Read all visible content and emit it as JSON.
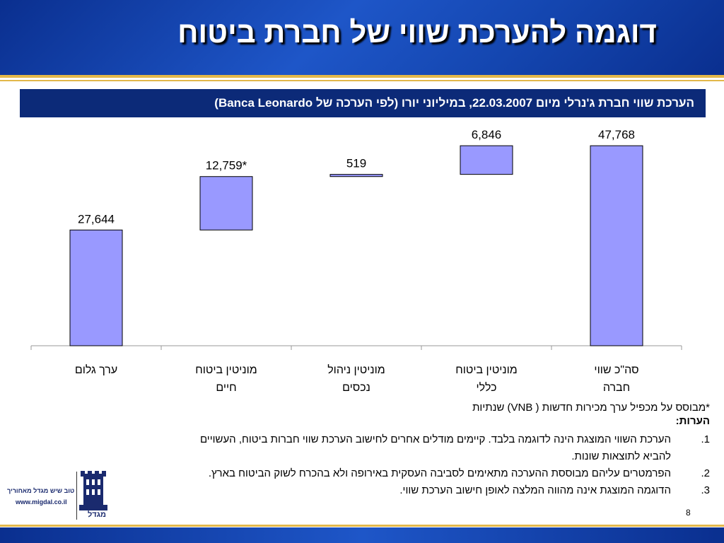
{
  "title": "דוגמה להערכת שווי של חברת ביטוח",
  "subtitle": "הערכת שווי חברת ג'נרלי מיום 22.03.2007, במיליוני יורו (לפי הערכה של Banca Leonardo)",
  "chart_data": {
    "type": "bar",
    "subtype": "waterfall",
    "categories": [
      [
        "ערך גלום"
      ],
      [
        "מוניטין ביטוח",
        "חיים"
      ],
      [
        "מוניטין ניהול",
        "נכסים"
      ],
      [
        "מוניטין ביטוח",
        "כללי"
      ],
      [
        "סה\"כ שווי",
        "חברה"
      ]
    ],
    "values": [
      27644,
      12759,
      519,
      6846,
      47768
    ],
    "data_labels": [
      "27,644",
      "12,759*",
      "519",
      "6,846",
      "47,768"
    ],
    "ylim": [
      0,
      51500
    ],
    "bar_color": "#9999ff",
    "grid": false
  },
  "footnote": "*מבוסס על מכפיל ערך מכירות חדשות ( VNB) שנתיות",
  "notes_title": "הערות:",
  "notes": [
    {
      "num": "1.",
      "lines": [
        "הערכת השווי המוצגת הינה לדוגמה בלבד. קיימים מודלים אחרים לחישוב הערכת שווי חברות ביטוח, העשויים",
        "להביא לתוצאות שונות."
      ]
    },
    {
      "num": "2.",
      "lines": [
        "הפרמטרים עליהם מבוססת ההערכה מתאימים לסביבה העסקית באירופה ולא בהכרח לשוק הביטוח בארץ."
      ]
    },
    {
      "num": "3.",
      "lines": [
        "הדוגמה המוצגת אינה מהווה המלצה לאופן חישוב הערכת שווי."
      ]
    }
  ],
  "logo": {
    "slogan": "טוב שיש מגדל מאחוריך",
    "url": "www.migdal.co.il",
    "name": "מגדל"
  },
  "page_number": "8"
}
